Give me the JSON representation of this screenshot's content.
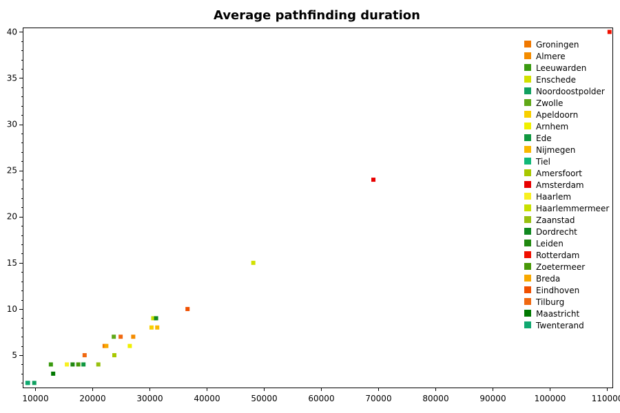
{
  "chart_data": {
    "type": "scatter",
    "title": "Average pathfinding duration",
    "xlabel": "",
    "ylabel": "",
    "xlim": [
      8000,
      111000
    ],
    "ylim": [
      1.5,
      40.4
    ],
    "x_ticks": [
      10000,
      20000,
      30000,
      40000,
      50000,
      60000,
      70000,
      80000,
      90000,
      100000,
      110000
    ],
    "y_ticks": [
      5,
      10,
      15,
      20,
      25,
      30,
      35,
      40
    ],
    "grid": false,
    "legend_position": "top-right",
    "series": [
      {
        "name": "Groningen",
        "color": "#f07800",
        "points": [
          [
            22200,
            6
          ]
        ]
      },
      {
        "name": "Almere",
        "color": "#f48c00",
        "points": [
          [
            27200,
            7
          ]
        ]
      },
      {
        "name": "Leeuwarden",
        "color": "#3a9a10",
        "points": [
          [
            12800,
            4
          ]
        ]
      },
      {
        "name": "Enschede",
        "color": "#d2e000",
        "points": [
          [
            48200,
            15
          ]
        ]
      },
      {
        "name": "Noordoostpolder",
        "color": "#10a060",
        "points": [
          [
            9900,
            2
          ]
        ]
      },
      {
        "name": "Zwolle",
        "color": "#60a818",
        "points": [
          [
            23800,
            7
          ]
        ]
      },
      {
        "name": "Apeldoorn",
        "color": "#f8d000",
        "points": [
          [
            30400,
            8
          ]
        ]
      },
      {
        "name": "Arnhem",
        "color": "#f0f000",
        "points": [
          [
            26600,
            6
          ]
        ]
      },
      {
        "name": "Ede",
        "color": "#109840",
        "points": [
          [
            18500,
            4
          ]
        ]
      },
      {
        "name": "Nijmegen",
        "color": "#f8b800",
        "points": [
          [
            31400,
            8
          ]
        ]
      },
      {
        "name": "Tiel",
        "color": "#10b878",
        "points": [
          [
            8700,
            2
          ]
        ]
      },
      {
        "name": "Amersfoort",
        "color": "#a8c800",
        "points": [
          [
            23900,
            5
          ]
        ]
      },
      {
        "name": "Amsterdam",
        "color": "#e80000",
        "points": [
          [
            69200,
            24
          ]
        ]
      },
      {
        "name": "Haarlem",
        "color": "#f8f020",
        "points": [
          [
            15600,
            4
          ]
        ]
      },
      {
        "name": "Haarlemmermeer",
        "color": "#c8e000",
        "points": [
          [
            30700,
            9
          ]
        ]
      },
      {
        "name": "Zaanstad",
        "color": "#98c010",
        "points": [
          [
            21100,
            4
          ]
        ]
      },
      {
        "name": "Dordrecht",
        "color": "#108820",
        "points": [
          [
            31200,
            9
          ]
        ]
      },
      {
        "name": "Leiden",
        "color": "#208810",
        "points": [
          [
            16600,
            4
          ]
        ]
      },
      {
        "name": "Rotterdam",
        "color": "#f01000",
        "points": [
          [
            110500,
            40
          ]
        ]
      },
      {
        "name": "Zoetermeer",
        "color": "#489808",
        "points": [
          [
            17600,
            4
          ]
        ]
      },
      {
        "name": "Breda",
        "color": "#f8a800",
        "points": [
          [
            22500,
            6
          ]
        ]
      },
      {
        "name": "Eindhoven",
        "color": "#f05000",
        "points": [
          [
            36700,
            10
          ]
        ]
      },
      {
        "name": "Tilburg",
        "color": "#f06810",
        "points": [
          [
            18700,
            5
          ],
          [
            25000,
            7
          ]
        ]
      },
      {
        "name": "Maastricht",
        "color": "#007800",
        "points": [
          [
            13200,
            3
          ]
        ]
      },
      {
        "name": "Twenterand",
        "color": "#10a870",
        "points": [
          [
            8800,
            2
          ]
        ]
      }
    ]
  }
}
